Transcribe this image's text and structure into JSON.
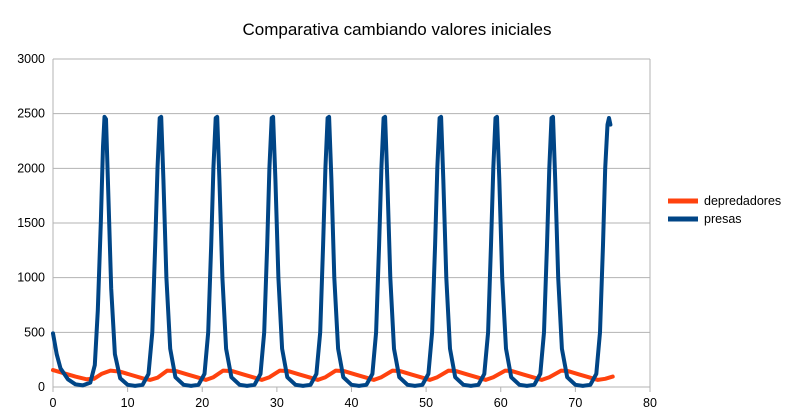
{
  "chart_data": {
    "type": "line",
    "title": "Comparativa cambiando valores iniciales",
    "xlabel": "",
    "ylabel": "",
    "xlim": [
      0,
      80
    ],
    "ylim": [
      0,
      3000
    ],
    "x_ticks": [
      0,
      10,
      20,
      30,
      40,
      50,
      60,
      70,
      80
    ],
    "y_ticks": [
      0,
      500,
      1000,
      1500,
      2000,
      2500,
      3000
    ],
    "grid": "horizontal",
    "legend_position": "right",
    "series": [
      {
        "name": "depredadores",
        "color": "#ff420e",
        "points": [
          [
            0,
            155
          ],
          [
            1.5,
            125
          ],
          [
            3,
            95
          ],
          [
            4.5,
            70
          ],
          [
            5.5,
            75
          ],
          [
            6.5,
            120
          ],
          [
            7.7,
            150
          ],
          [
            9,
            140
          ],
          [
            10.5,
            110
          ],
          [
            12,
            80
          ],
          [
            13,
            65
          ],
          [
            14,
            85
          ],
          [
            15.3,
            150
          ],
          [
            16.5,
            145
          ],
          [
            18,
            115
          ],
          [
            19.5,
            85
          ],
          [
            20.5,
            65
          ],
          [
            21.5,
            90
          ],
          [
            22.8,
            150
          ],
          [
            24,
            145
          ],
          [
            25.5,
            115
          ],
          [
            27,
            85
          ],
          [
            28,
            65
          ],
          [
            29,
            90
          ],
          [
            30.4,
            150
          ],
          [
            31.5,
            145
          ],
          [
            33,
            115
          ],
          [
            34.5,
            85
          ],
          [
            35.5,
            65
          ],
          [
            36.5,
            90
          ],
          [
            37.9,
            150
          ],
          [
            39,
            145
          ],
          [
            40.5,
            115
          ],
          [
            42,
            85
          ],
          [
            43,
            65
          ],
          [
            44,
            90
          ],
          [
            45.5,
            150
          ],
          [
            46.5,
            145
          ],
          [
            48,
            115
          ],
          [
            49.5,
            85
          ],
          [
            50.5,
            65
          ],
          [
            51.5,
            90
          ],
          [
            53,
            150
          ],
          [
            54,
            145
          ],
          [
            55.5,
            115
          ],
          [
            57,
            85
          ],
          [
            58,
            65
          ],
          [
            59,
            90
          ],
          [
            60.6,
            150
          ],
          [
            61.5,
            145
          ],
          [
            63,
            115
          ],
          [
            64.5,
            85
          ],
          [
            65.5,
            65
          ],
          [
            66.5,
            90
          ],
          [
            68.1,
            150
          ],
          [
            69,
            145
          ],
          [
            70.5,
            115
          ],
          [
            72,
            85
          ],
          [
            73,
            65
          ],
          [
            74,
            75
          ],
          [
            75,
            95
          ]
        ]
      },
      {
        "name": "presas",
        "color": "#004586",
        "points": [
          [
            0,
            490
          ],
          [
            0.5,
            300
          ],
          [
            1,
            170
          ],
          [
            2,
            70
          ],
          [
            3,
            25
          ],
          [
            4,
            15
          ],
          [
            5,
            40
          ],
          [
            5.6,
            200
          ],
          [
            6,
            700
          ],
          [
            6.4,
            1500
          ],
          [
            6.7,
            2200
          ],
          [
            6.9,
            2470
          ],
          [
            7.1,
            2450
          ],
          [
            7.4,
            1800
          ],
          [
            7.8,
            900
          ],
          [
            8.3,
            300
          ],
          [
            9,
            80
          ],
          [
            10,
            20
          ],
          [
            11,
            10
          ],
          [
            12,
            20
          ],
          [
            12.8,
            120
          ],
          [
            13.3,
            500
          ],
          [
            13.7,
            1300
          ],
          [
            14,
            2000
          ],
          [
            14.3,
            2460
          ],
          [
            14.5,
            2470
          ],
          [
            14.8,
            1900
          ],
          [
            15.2,
            1000
          ],
          [
            15.7,
            350
          ],
          [
            16.4,
            90
          ],
          [
            17.5,
            20
          ],
          [
            18.5,
            10
          ],
          [
            19.5,
            20
          ],
          [
            20.3,
            120
          ],
          [
            20.8,
            500
          ],
          [
            21.2,
            1300
          ],
          [
            21.5,
            2000
          ],
          [
            21.8,
            2460
          ],
          [
            22,
            2470
          ],
          [
            22.3,
            1900
          ],
          [
            22.7,
            1000
          ],
          [
            23.2,
            350
          ],
          [
            23.9,
            90
          ],
          [
            25,
            20
          ],
          [
            26,
            10
          ],
          [
            27,
            20
          ],
          [
            27.8,
            120
          ],
          [
            28.3,
            500
          ],
          [
            28.7,
            1300
          ],
          [
            29,
            2000
          ],
          [
            29.3,
            2460
          ],
          [
            29.5,
            2470
          ],
          [
            29.8,
            1900
          ],
          [
            30.2,
            1000
          ],
          [
            30.7,
            350
          ],
          [
            31.4,
            90
          ],
          [
            32.5,
            20
          ],
          [
            33.5,
            10
          ],
          [
            34.5,
            20
          ],
          [
            35.3,
            120
          ],
          [
            35.8,
            500
          ],
          [
            36.2,
            1300
          ],
          [
            36.5,
            2000
          ],
          [
            36.8,
            2460
          ],
          [
            37,
            2470
          ],
          [
            37.3,
            1900
          ],
          [
            37.7,
            1000
          ],
          [
            38.2,
            350
          ],
          [
            38.9,
            90
          ],
          [
            40,
            20
          ],
          [
            41,
            10
          ],
          [
            42,
            20
          ],
          [
            42.8,
            120
          ],
          [
            43.3,
            500
          ],
          [
            43.7,
            1300
          ],
          [
            44,
            2000
          ],
          [
            44.3,
            2460
          ],
          [
            44.5,
            2470
          ],
          [
            44.8,
            1900
          ],
          [
            45.2,
            1000
          ],
          [
            45.7,
            350
          ],
          [
            46.4,
            90
          ],
          [
            47.5,
            20
          ],
          [
            48.5,
            10
          ],
          [
            49.5,
            20
          ],
          [
            50.3,
            120
          ],
          [
            50.8,
            500
          ],
          [
            51.2,
            1300
          ],
          [
            51.5,
            2000
          ],
          [
            51.8,
            2460
          ],
          [
            52,
            2470
          ],
          [
            52.3,
            1900
          ],
          [
            52.7,
            1000
          ],
          [
            53.2,
            350
          ],
          [
            53.9,
            90
          ],
          [
            55,
            20
          ],
          [
            56,
            10
          ],
          [
            57,
            20
          ],
          [
            57.8,
            120
          ],
          [
            58.3,
            500
          ],
          [
            58.7,
            1300
          ],
          [
            59,
            2000
          ],
          [
            59.3,
            2460
          ],
          [
            59.5,
            2470
          ],
          [
            59.8,
            1900
          ],
          [
            60.2,
            1000
          ],
          [
            60.7,
            350
          ],
          [
            61.4,
            90
          ],
          [
            62.5,
            20
          ],
          [
            63.5,
            10
          ],
          [
            64.5,
            20
          ],
          [
            65.3,
            120
          ],
          [
            65.8,
            500
          ],
          [
            66.2,
            1300
          ],
          [
            66.5,
            2000
          ],
          [
            66.8,
            2460
          ],
          [
            67,
            2470
          ],
          [
            67.3,
            1900
          ],
          [
            67.7,
            1000
          ],
          [
            68.2,
            350
          ],
          [
            68.9,
            90
          ],
          [
            70,
            20
          ],
          [
            71,
            10
          ],
          [
            72,
            20
          ],
          [
            72.8,
            120
          ],
          [
            73.3,
            500
          ],
          [
            73.7,
            1300
          ],
          [
            74,
            2000
          ],
          [
            74.3,
            2400
          ],
          [
            74.5,
            2460
          ],
          [
            74.7,
            2400
          ]
        ]
      }
    ]
  }
}
